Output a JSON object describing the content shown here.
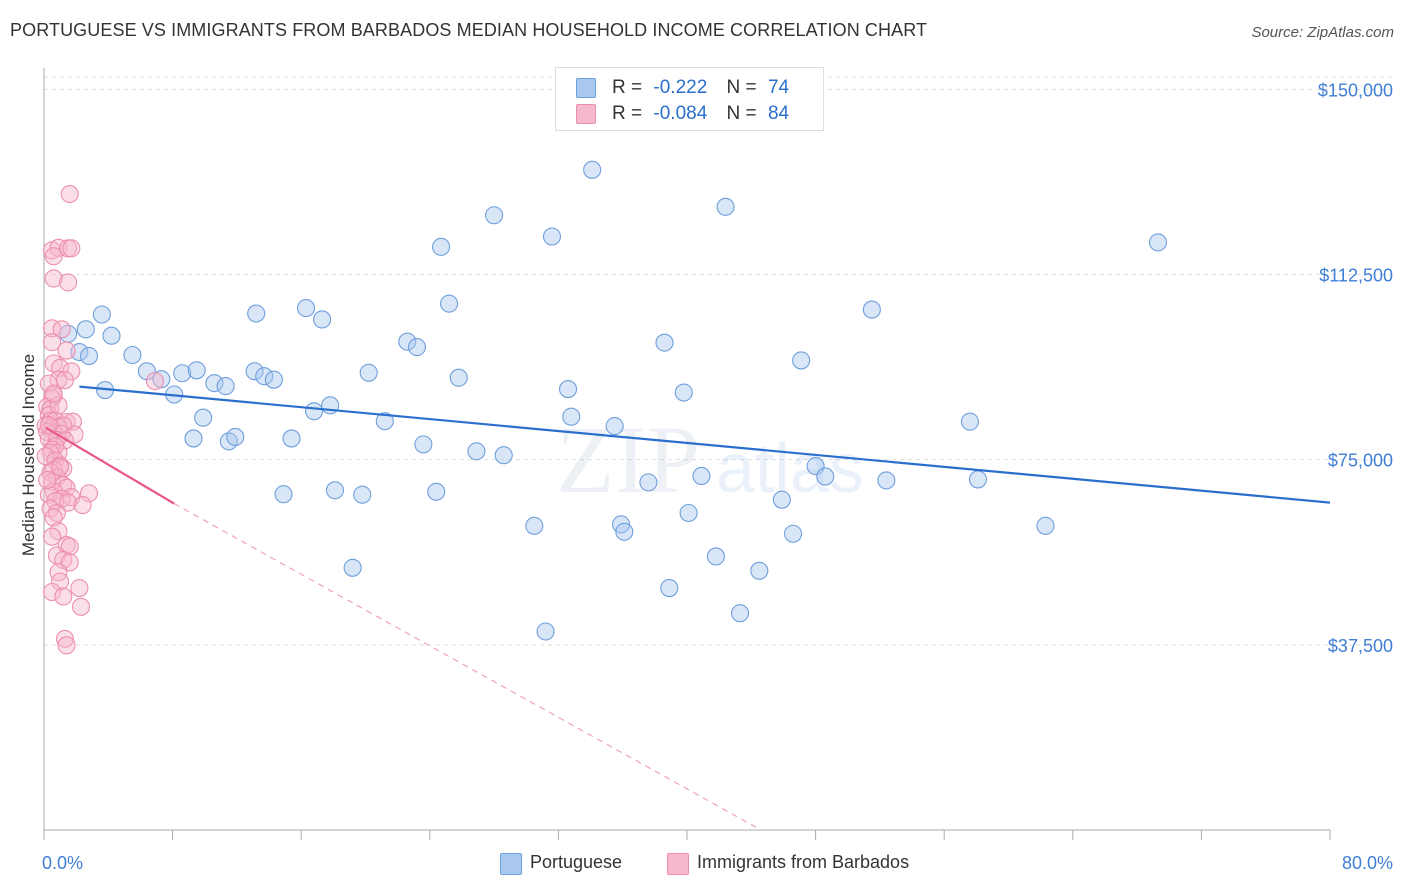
{
  "title": "PORTUGUESE VS IMMIGRANTS FROM BARBADOS MEDIAN HOUSEHOLD INCOME CORRELATION CHART",
  "source": "Source: ZipAtlas.com",
  "watermark": {
    "zip": "ZIP",
    "atlas": "atlas"
  },
  "legend": {
    "r_label": "R =",
    "n_label": "N =",
    "rows": [
      {
        "series": "Portuguese",
        "r": "-0.222",
        "n": "74",
        "color": "#a9c8f0",
        "edge": "#6f9fdc"
      },
      {
        "series": "Immigrants from Barbados",
        "r": "-0.084",
        "n": "84",
        "color": "#f6b8cb",
        "edge": "#ec8fae"
      }
    ]
  },
  "chart_data": {
    "type": "scatter",
    "title": "PORTUGUESE VS IMMIGRANTS FROM BARBADOS MEDIAN HOUSEHOLD INCOME CORRELATION CHART",
    "xlabel": "",
    "ylabel": "Median Household Income",
    "xlim": [
      0,
      80
    ],
    "ylim": [
      0,
      152500
    ],
    "x_tick_labels": {
      "left": "0.0%",
      "right": "80.0%"
    },
    "y_ticks": [
      {
        "value": 37500,
        "label": "$37,500"
      },
      {
        "value": 75000,
        "label": "$75,000"
      },
      {
        "value": 112500,
        "label": "$112,500"
      },
      {
        "value": 150000,
        "label": "$150,000"
      }
    ],
    "grid": true,
    "series": [
      {
        "name": "Portuguese",
        "color": "#a9c8f0",
        "edge": "#6f9fdc",
        "trend": {
          "x": [
            2.2,
            80
          ],
          "y": [
            89800,
            66300
          ],
          "color": "#2a6fce"
        },
        "points": [
          [
            2.2,
            96.8
          ],
          [
            1.5,
            100.5
          ],
          [
            3.6,
            104.4
          ],
          [
            2.6,
            101.4
          ],
          [
            4.2,
            100.1
          ],
          [
            5.5,
            96.2
          ],
          [
            3.8,
            89.1
          ],
          [
            6.4,
            92.9
          ],
          [
            7.3,
            91.3
          ],
          [
            8.1,
            88.2
          ],
          [
            8.6,
            92.5
          ],
          [
            9.5,
            93.1
          ],
          [
            9.3,
            79.3
          ],
          [
            9.9,
            83.5
          ],
          [
            10.6,
            90.5
          ],
          [
            11.3,
            89.9
          ],
          [
            11.5,
            78.7
          ],
          [
            11.9,
            79.6
          ],
          [
            13.1,
            92.9
          ],
          [
            13.2,
            104.6
          ],
          [
            13.7,
            91.9
          ],
          [
            14.3,
            91.2
          ],
          [
            14.9,
            68.0
          ],
          [
            15.4,
            79.3
          ],
          [
            16.3,
            105.7
          ],
          [
            16.8,
            84.8
          ],
          [
            17.3,
            103.4
          ],
          [
            17.8,
            86.0
          ],
          [
            18.1,
            68.8
          ],
          [
            19.2,
            53.1
          ],
          [
            19.8,
            67.9
          ],
          [
            20.2,
            92.6
          ],
          [
            21.2,
            82.8
          ],
          [
            22.6,
            98.9
          ],
          [
            23.2,
            97.8
          ],
          [
            23.6,
            78.1
          ],
          [
            24.4,
            68.5
          ],
          [
            24.7,
            118.1
          ],
          [
            25.2,
            106.6
          ],
          [
            25.8,
            91.6
          ],
          [
            26.9,
            76.7
          ],
          [
            28.0,
            124.5
          ],
          [
            28.6,
            75.9
          ],
          [
            30.5,
            61.6
          ],
          [
            31.2,
            40.2
          ],
          [
            31.6,
            120.2
          ],
          [
            32.6,
            89.3
          ],
          [
            32.8,
            83.7
          ],
          [
            34.1,
            133.7
          ],
          [
            35.5,
            81.8
          ],
          [
            35.9,
            61.9
          ],
          [
            36.1,
            60.4
          ],
          [
            37.6,
            70.4
          ],
          [
            38.6,
            98.7
          ],
          [
            38.9,
            49.0
          ],
          [
            39.8,
            88.6
          ],
          [
            40.1,
            64.2
          ],
          [
            40.9,
            71.7
          ],
          [
            41.8,
            55.4
          ],
          [
            42.4,
            126.2
          ],
          [
            43.3,
            43.9
          ],
          [
            44.5,
            52.5
          ],
          [
            45.9,
            66.9
          ],
          [
            46.6,
            60.0
          ],
          [
            47.1,
            95.1
          ],
          [
            48.0,
            73.7
          ],
          [
            48.6,
            71.6
          ],
          [
            51.5,
            105.4
          ],
          [
            52.4,
            70.8
          ],
          [
            57.6,
            82.7
          ],
          [
            58.1,
            71.0
          ],
          [
            62.3,
            61.6
          ],
          [
            69.3,
            119.0
          ],
          [
            2.8,
            96.0
          ]
        ]
      },
      {
        "name": "Immigrants from Barbados",
        "color": "#f6b8cb",
        "edge": "#ec8fae",
        "trend": {
          "x": [
            0.1,
            8.1
          ],
          "y": [
            81500,
            66100
          ],
          "color": "#e8598a",
          "dashed_extension": {
            "x": [
              8.1,
              44.6
            ],
            "y": [
              66100,
              0
            ]
          }
        },
        "points": [
          [
            1.6,
            128.8
          ],
          [
            0.5,
            117.4
          ],
          [
            0.9,
            117.9
          ],
          [
            1.5,
            117.8
          ],
          [
            1.7,
            117.8
          ],
          [
            0.6,
            116.2
          ],
          [
            0.6,
            111.7
          ],
          [
            1.5,
            110.9
          ],
          [
            0.5,
            101.6
          ],
          [
            1.1,
            101.4
          ],
          [
            0.5,
            98.8
          ],
          [
            1.4,
            97.1
          ],
          [
            0.6,
            94.5
          ],
          [
            1.0,
            93.6
          ],
          [
            1.7,
            92.9
          ],
          [
            0.9,
            91.2
          ],
          [
            1.3,
            91.1
          ],
          [
            6.9,
            90.9
          ],
          [
            0.3,
            90.4
          ],
          [
            0.6,
            88.0
          ],
          [
            0.5,
            87.4
          ],
          [
            0.2,
            85.7
          ],
          [
            0.4,
            85.2
          ],
          [
            0.3,
            84.0
          ],
          [
            0.4,
            82.9
          ],
          [
            0.7,
            82.9
          ],
          [
            1.4,
            82.6
          ],
          [
            1.8,
            82.7
          ],
          [
            0.1,
            81.9
          ],
          [
            0.5,
            81.5
          ],
          [
            0.9,
            81.6
          ],
          [
            1.2,
            81.9
          ],
          [
            0.6,
            80.5
          ],
          [
            0.2,
            80.6
          ],
          [
            1.1,
            80.2
          ],
          [
            1.9,
            80.1
          ],
          [
            0.3,
            79.2
          ],
          [
            0.8,
            79.0
          ],
          [
            1.3,
            78.9
          ],
          [
            0.7,
            77.7
          ],
          [
            0.5,
            77.0
          ],
          [
            0.9,
            76.4
          ],
          [
            0.4,
            76.4
          ],
          [
            0.1,
            75.7
          ],
          [
            0.7,
            74.8
          ],
          [
            1.0,
            73.8
          ],
          [
            1.2,
            73.2
          ],
          [
            0.6,
            72.9
          ],
          [
            0.4,
            72.4
          ],
          [
            0.8,
            71.4
          ],
          [
            0.5,
            70.5
          ],
          [
            1.2,
            69.8
          ],
          [
            1.4,
            69.3
          ],
          [
            0.6,
            68.6
          ],
          [
            0.3,
            67.9
          ],
          [
            2.8,
            68.2
          ],
          [
            1.7,
            67.4
          ],
          [
            1.1,
            67.1
          ],
          [
            0.7,
            66.6
          ],
          [
            1.5,
            66.3
          ],
          [
            2.4,
            65.8
          ],
          [
            0.4,
            65.1
          ],
          [
            0.8,
            64.2
          ],
          [
            0.6,
            63.3
          ],
          [
            0.9,
            60.5
          ],
          [
            1.4,
            57.7
          ],
          [
            1.6,
            57.4
          ],
          [
            0.8,
            55.6
          ],
          [
            1.2,
            54.7
          ],
          [
            1.6,
            54.2
          ],
          [
            0.9,
            52.2
          ],
          [
            1.0,
            50.3
          ],
          [
            2.2,
            49.0
          ],
          [
            0.5,
            48.2
          ],
          [
            1.2,
            47.3
          ],
          [
            2.3,
            45.2
          ],
          [
            1.3,
            38.7
          ],
          [
            1.4,
            37.4
          ],
          [
            0.3,
            82.0
          ],
          [
            0.9,
            86.0
          ],
          [
            0.2,
            70.9
          ],
          [
            0.5,
            59.4
          ],
          [
            1.0,
            73.5
          ],
          [
            0.6,
            88.4
          ]
        ]
      }
    ]
  },
  "axes": {
    "ylabel": "Median Household Income",
    "x_left": "0.0%",
    "x_right": "80.0%"
  }
}
